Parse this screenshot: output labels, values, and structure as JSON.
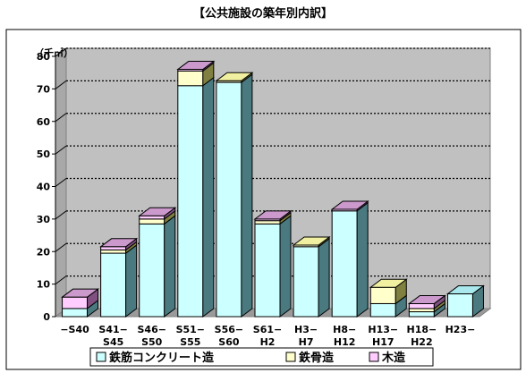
{
  "chart_data": {
    "type": "bar",
    "stacked": true,
    "title": "【公共施設の築年別内訳】",
    "unit_label": "（千㎡）",
    "ylim": [
      0,
      80
    ],
    "ytick_step": 10,
    "categories": [
      [
        "−S40"
      ],
      [
        "S41−",
        "S45"
      ],
      [
        "S46−",
        "S50"
      ],
      [
        "S51−",
        "S55"
      ],
      [
        "S56−",
        "S60"
      ],
      [
        "S61−",
        "H2"
      ],
      [
        "H3−",
        "H7"
      ],
      [
        "H8−",
        "H12"
      ],
      [
        "H13−",
        "H17"
      ],
      [
        "H18−",
        "H22"
      ],
      [
        "H23−"
      ]
    ],
    "series": [
      {
        "name": "鉄筋コンクリート造",
        "color": "#ccffff",
        "side": "#4a7a80",
        "top": "#a9e9ee",
        "values": [
          2.5,
          19.5,
          28.5,
          71,
          72,
          28.5,
          21.5,
          32.5,
          4,
          1.5,
          7
        ]
      },
      {
        "name": "鉄骨造",
        "color": "#ffffcc",
        "side": "#808040",
        "top": "#f0f0a0",
        "values": [
          0,
          1,
          1.5,
          4.5,
          0.5,
          1,
          0.5,
          0,
          5,
          1,
          0
        ]
      },
      {
        "name": "木造",
        "color": "#ffccff",
        "side": "#805080",
        "top": "#cc99cc",
        "values": [
          3.5,
          1,
          1,
          0.5,
          0,
          0.5,
          0,
          0.5,
          0,
          1.5,
          0
        ]
      }
    ],
    "grid": "dotted-horizontal",
    "legend_position": "bottom"
  }
}
